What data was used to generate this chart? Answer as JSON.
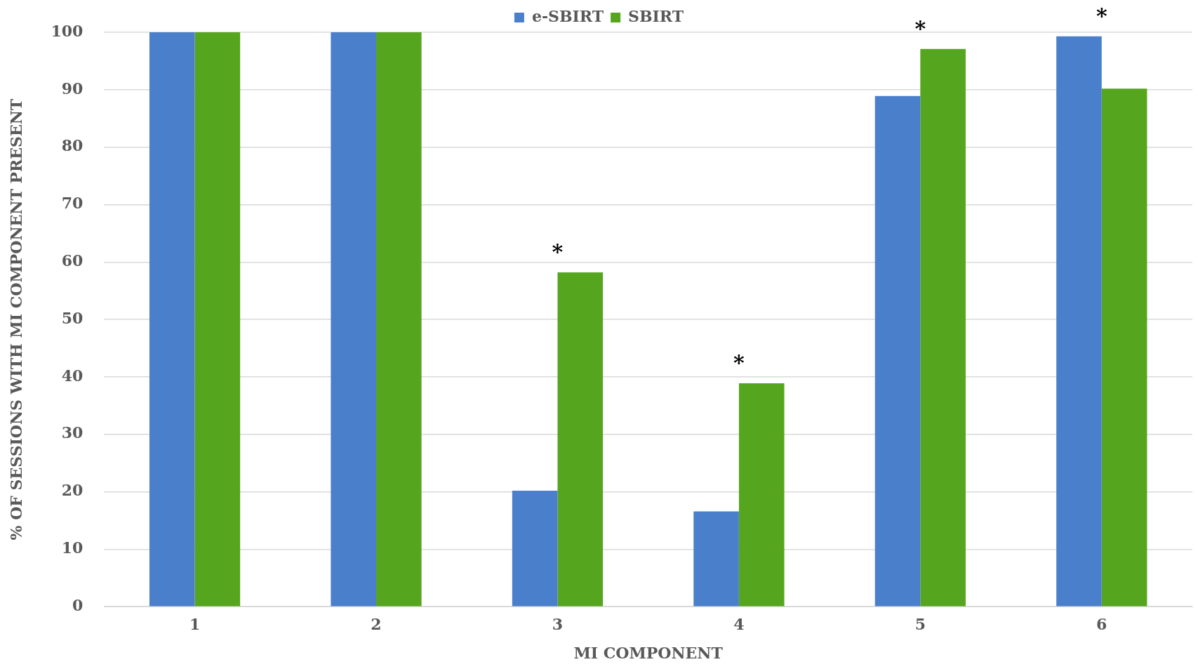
{
  "chart_data": {
    "type": "bar",
    "xlabel": "MI COMPONENT",
    "ylabel": "% OF SESSIONS WITH MI COMPONENT PRESENT",
    "categories": [
      "1",
      "2",
      "3",
      "4",
      "5",
      "6"
    ],
    "series": [
      {
        "name": "e-SBIRT",
        "color": "#4a7fcc",
        "values": [
          100,
          100,
          20.2,
          16.6,
          88.9,
          99.3
        ]
      },
      {
        "name": "SBIRT",
        "color": "#56a51e",
        "values": [
          100,
          100,
          58.2,
          38.9,
          97.1,
          90.2
        ]
      }
    ],
    "ylim": [
      0,
      100
    ],
    "yticks": [
      0,
      10,
      20,
      30,
      40,
      50,
      60,
      70,
      80,
      90,
      100
    ],
    "grid": "y",
    "legend": "top",
    "annotations": [
      {
        "text": "*",
        "x": "3",
        "y": 58.2
      },
      {
        "text": "*",
        "x": "4",
        "y": 38.9
      },
      {
        "text": "*",
        "x": "5",
        "y": 97.1
      },
      {
        "text": "*",
        "x": "6",
        "y": 99.3
      }
    ]
  }
}
